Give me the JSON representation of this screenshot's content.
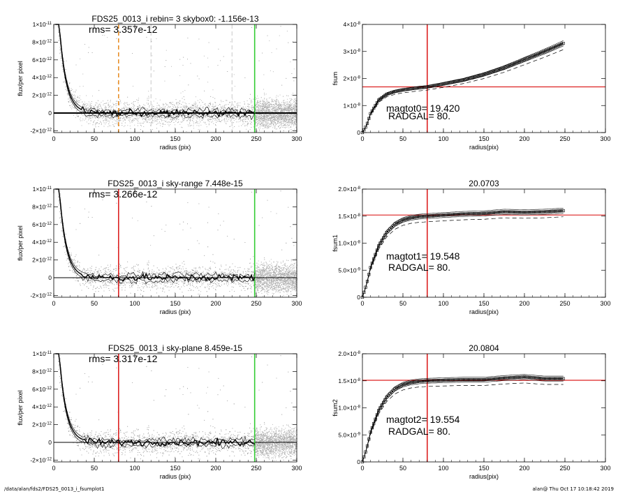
{
  "footer": {
    "path": "/data/alan/fds2/FDS25_0013_i_fsumplot1",
    "stamp": "alan@  Thu Oct 17 10:18:42 2019"
  },
  "colors": {
    "scatter": "#a9a9a9",
    "profile": "#000000",
    "orange_line": "#e8902a",
    "red_line": "#dd2222",
    "green_line": "#33cc33",
    "gray_dash": "#bbbbbb"
  },
  "chart_data": [
    {
      "type": "scatter",
      "panel": "left-top",
      "title": "FDS25_0013_i rebin= 3    skybox0: -1.156e-13",
      "annotation": "rms= 3.357e-12",
      "xlabel": "radius (pix)",
      "ylabel": "flux/per pixel",
      "xlim": [
        0,
        300
      ],
      "ylim": [
        -2.2e-12,
        1e-11
      ],
      "xticks": [
        "0",
        "50",
        "100",
        "150",
        "200",
        "250",
        "300"
      ],
      "yticks": [
        {
          "v": 1e-11,
          "base": "1×10",
          "exp": "-11"
        },
        {
          "v": 8e-12,
          "base": "8×10",
          "exp": "-12"
        },
        {
          "v": 6e-12,
          "base": "6×10",
          "exp": "-12"
        },
        {
          "v": 4e-12,
          "base": "4×10",
          "exp": "-12"
        },
        {
          "v": 2e-12,
          "base": "2×10",
          "exp": "-12"
        },
        {
          "v": 0,
          "base": "0",
          "exp": ""
        },
        {
          "v": -2e-12,
          "base": "-2×10",
          "exp": "-12"
        }
      ],
      "vlines": [
        {
          "x": 80,
          "color": "#e8902a",
          "dash": true
        },
        {
          "x": 120,
          "color": "#bbbbbb",
          "dash": true
        },
        {
          "x": 220,
          "color": "#bbbbbb",
          "dash": true
        },
        {
          "x": 248,
          "color": "#33cc33",
          "dash": false
        }
      ],
      "hlines": [
        {
          "y": 0,
          "color": "#000000",
          "width": 2
        }
      ]
    },
    {
      "type": "line",
      "panel": "right-top",
      "title": "",
      "xlabel": "radius(pix)",
      "ylabel": "fsum",
      "xlim": [
        0,
        300
      ],
      "ylim": [
        0,
        4e-08
      ],
      "xticks": [
        "0",
        "50",
        "100",
        "150",
        "200",
        "250",
        "300"
      ],
      "yticks": [
        {
          "v": 4e-08,
          "base": "4×10",
          "exp": "-8"
        },
        {
          "v": 3e-08,
          "base": "3×10",
          "exp": "-8"
        },
        {
          "v": 2e-08,
          "base": "2×10",
          "exp": "-8"
        },
        {
          "v": 1e-08,
          "base": "1×10",
          "exp": "-8"
        },
        {
          "v": 0,
          "base": "0",
          "exp": ""
        }
      ],
      "series": [
        {
          "x": [
            0,
            5,
            10,
            20,
            30,
            40,
            50,
            60,
            70,
            80,
            100,
            125,
            150,
            175,
            200,
            225,
            248
          ],
          "values": [
            0,
            2.5e-09,
            7e-09,
            1.2e-08,
            1.42e-08,
            1.52e-08,
            1.58e-08,
            1.62e-08,
            1.66e-08,
            1.69e-08,
            1.8e-08,
            1.95e-08,
            2.15e-08,
            2.4e-08,
            2.7e-08,
            3e-08,
            3.3e-08
          ]
        }
      ],
      "markers": true,
      "vlines": [
        {
          "x": 80,
          "color": "#dd2222"
        }
      ],
      "hlines": [
        {
          "y": 1.69e-08,
          "color": "#dd2222"
        }
      ],
      "annotations": [
        "magtot0=  19.420",
        "RADGAL=     80."
      ]
    },
    {
      "type": "scatter",
      "panel": "left-middle",
      "title": "FDS25_0013_i sky-range  7.448e-15",
      "annotation": "rms= 3.266e-12",
      "xlabel": "radius (pix)",
      "ylabel": "flux/per pixel",
      "xlim": [
        0,
        300
      ],
      "ylim": [
        -2.2e-12,
        1e-11
      ],
      "xticks": [
        "0",
        "50",
        "100",
        "150",
        "200",
        "250",
        "300"
      ],
      "yticks": [
        {
          "v": 1e-11,
          "base": "1×10",
          "exp": "-11"
        },
        {
          "v": 8e-12,
          "base": "8×10",
          "exp": "-12"
        },
        {
          "v": 6e-12,
          "base": "6×10",
          "exp": "-12"
        },
        {
          "v": 4e-12,
          "base": "4×10",
          "exp": "-12"
        },
        {
          "v": 2e-12,
          "base": "2×10",
          "exp": "-12"
        },
        {
          "v": 0,
          "base": "0",
          "exp": ""
        },
        {
          "v": -2e-12,
          "base": "-2×10",
          "exp": "-12"
        }
      ],
      "vlines": [
        {
          "x": 80,
          "color": "#dd2222",
          "dash": false
        },
        {
          "x": 248,
          "color": "#33cc33",
          "dash": false
        }
      ],
      "hlines": [
        {
          "y": 0,
          "color": "#000000",
          "width": 1
        }
      ]
    },
    {
      "type": "line",
      "panel": "right-middle",
      "title": "20.0703",
      "xlabel": "radius(pix)",
      "ylabel": "fsum1",
      "xlim": [
        0,
        300
      ],
      "ylim": [
        0,
        2e-08
      ],
      "xticks": [
        "0",
        "50",
        "100",
        "150",
        "200",
        "250",
        "300"
      ],
      "yticks": [
        {
          "v": 2e-08,
          "base": "2.0×10",
          "exp": "-8"
        },
        {
          "v": 1.5e-08,
          "base": "1.5×10",
          "exp": "-8"
        },
        {
          "v": 1e-08,
          "base": "1.0×10",
          "exp": "-8"
        },
        {
          "v": 5e-09,
          "base": "5.0×10",
          "exp": "-9"
        },
        {
          "v": 0,
          "base": "0",
          "exp": ""
        }
      ],
      "series": [
        {
          "x": [
            0,
            5,
            10,
            20,
            30,
            40,
            50,
            60,
            70,
            80,
            100,
            125,
            150,
            175,
            200,
            225,
            248
          ],
          "values": [
            0,
            2.3e-09,
            5.5e-09,
            9.5e-09,
            1.2e-08,
            1.35e-08,
            1.43e-08,
            1.47e-08,
            1.49e-08,
            1.5e-08,
            1.52e-08,
            1.54e-08,
            1.55e-08,
            1.58e-08,
            1.57e-08,
            1.58e-08,
            1.6e-08
          ]
        }
      ],
      "markers": true,
      "vlines": [
        {
          "x": 80,
          "color": "#dd2222"
        }
      ],
      "hlines": [
        {
          "y": 1.52e-08,
          "color": "#dd2222"
        }
      ],
      "annotations": [
        "magtot1=  19.548",
        "RADGAL=     80."
      ]
    },
    {
      "type": "scatter",
      "panel": "left-bottom",
      "title": "FDS25_0013_i sky-plane  8.459e-15",
      "annotation": "rms= 3.317e-12",
      "xlabel": "radius (pix)",
      "ylabel": "flux/per pixel",
      "xlim": [
        0,
        300
      ],
      "ylim": [
        -2.2e-12,
        1e-11
      ],
      "xticks": [
        "0",
        "50",
        "100",
        "150",
        "200",
        "250",
        "300"
      ],
      "yticks": [
        {
          "v": 1e-11,
          "base": "1×10",
          "exp": "-11"
        },
        {
          "v": 8e-12,
          "base": "8×10",
          "exp": "-12"
        },
        {
          "v": 6e-12,
          "base": "6×10",
          "exp": "-12"
        },
        {
          "v": 4e-12,
          "base": "4×10",
          "exp": "-12"
        },
        {
          "v": 2e-12,
          "base": "2×10",
          "exp": "-12"
        },
        {
          "v": 0,
          "base": "0",
          "exp": ""
        },
        {
          "v": -2e-12,
          "base": "-2×10",
          "exp": "-12"
        }
      ],
      "vlines": [
        {
          "x": 80,
          "color": "#dd2222",
          "dash": false
        },
        {
          "x": 248,
          "color": "#33cc33",
          "dash": false
        }
      ],
      "hlines": [
        {
          "y": 0,
          "color": "#000000",
          "width": 1
        }
      ]
    },
    {
      "type": "line",
      "panel": "right-bottom",
      "title": "20.0804",
      "xlabel": "radius(pix)",
      "ylabel": "fsum2",
      "xlim": [
        0,
        300
      ],
      "ylim": [
        0,
        2e-08
      ],
      "xticks": [
        "0",
        "50",
        "100",
        "150",
        "200",
        "250",
        "300"
      ],
      "yticks": [
        {
          "v": 2e-08,
          "base": "2.0×10",
          "exp": "-8"
        },
        {
          "v": 1.5e-08,
          "base": "1.5×10",
          "exp": "-8"
        },
        {
          "v": 1e-08,
          "base": "1.0×10",
          "exp": "-8"
        },
        {
          "v": 5e-09,
          "base": "5.0×10",
          "exp": "-9"
        },
        {
          "v": 0,
          "base": "0",
          "exp": ""
        }
      ],
      "series": [
        {
          "x": [
            0,
            5,
            10,
            20,
            30,
            40,
            50,
            60,
            70,
            80,
            100,
            125,
            150,
            175,
            200,
            225,
            248
          ],
          "values": [
            0,
            2.3e-09,
            5.5e-09,
            9.5e-09,
            1.2e-08,
            1.35e-08,
            1.43e-08,
            1.47e-08,
            1.49e-08,
            1.5e-08,
            1.51e-08,
            1.52e-08,
            1.52e-08,
            1.55e-08,
            1.57e-08,
            1.54e-08,
            1.54e-08
          ]
        }
      ],
      "markers": true,
      "vlines": [
        {
          "x": 80,
          "color": "#dd2222"
        }
      ],
      "hlines": [
        {
          "y": 1.51e-08,
          "color": "#dd2222"
        }
      ],
      "annotations": [
        "magtot2=  19.554",
        "RADGAL=     80."
      ]
    }
  ]
}
